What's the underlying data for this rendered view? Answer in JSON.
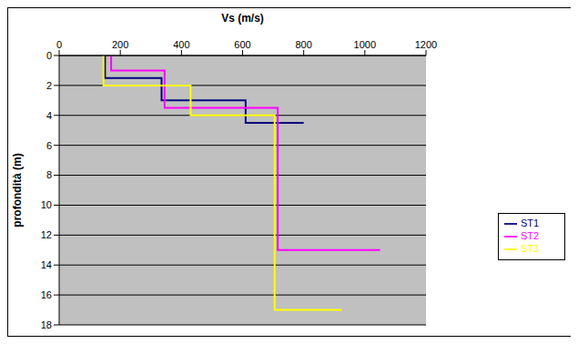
{
  "chart_data": {
    "type": "line",
    "x_label": "Vs (m/s)",
    "y_label": "profondità (m)",
    "xlim": [
      0,
      1200
    ],
    "xticks": [
      0,
      200,
      400,
      600,
      800,
      1000,
      1200
    ],
    "ylim": [
      18,
      0
    ],
    "yticks": [
      0,
      2,
      4,
      6,
      8,
      10,
      12,
      14,
      16,
      18
    ],
    "grid": true,
    "legend": "right",
    "series": [
      {
        "name": "ST1",
        "color": "#000080",
        "x": [
          150,
          150,
          335,
          335,
          610,
          610,
          800
        ],
        "y": [
          0,
          1.5,
          1.5,
          3,
          3,
          4.5,
          4.5
        ]
      },
      {
        "name": "ST2",
        "color": "#ff00ff",
        "x": [
          170,
          170,
          345,
          345,
          715,
          715,
          1050
        ],
        "y": [
          0,
          1,
          1,
          3.5,
          3.5,
          13,
          13
        ]
      },
      {
        "name": "ST3",
        "color": "#ffff00",
        "x": [
          145,
          145,
          430,
          430,
          705,
          705,
          925
        ],
        "y": [
          0,
          2,
          2,
          4,
          4,
          17,
          17
        ]
      }
    ]
  }
}
